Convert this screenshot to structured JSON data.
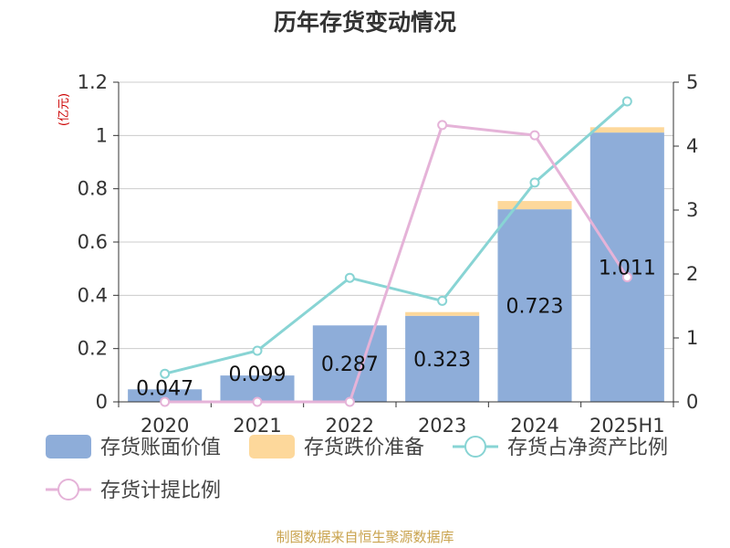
{
  "chart_data": {
    "type": "bar",
    "title": "历年存货变动情况",
    "categories": [
      "2020",
      "2021",
      "2022",
      "2023",
      "2024",
      "2025H1"
    ],
    "y_left": {
      "unit": "(亿元)",
      "range": [
        0,
        1.2
      ],
      "ticks": [
        "0",
        "0.2",
        "0.4",
        "0.6",
        "0.8",
        "1",
        "1.2"
      ]
    },
    "y_right": {
      "range": [
        0,
        5
      ],
      "ticks": [
        "0",
        "1",
        "2",
        "3",
        "4",
        "5"
      ]
    },
    "series": [
      {
        "name": "存货账面价值",
        "type": "bar",
        "axis": "left",
        "color": "#8eadd9",
        "values": [
          0.047,
          0.099,
          0.287,
          0.323,
          0.723,
          1.011
        ],
        "labels": [
          "0.047",
          "0.099",
          "0.287",
          "0.323",
          "0.723",
          "1.011"
        ]
      },
      {
        "name": "存货跌价准备",
        "type": "bar",
        "axis": "left",
        "stacked": true,
        "color": "#fdd89b",
        "values": [
          0,
          0,
          0,
          0.014,
          0.031,
          0.02
        ]
      },
      {
        "name": "存货占净资产比例",
        "type": "line",
        "axis": "right",
        "color": "#88d4d4",
        "values": [
          0.44,
          0.8,
          1.94,
          1.58,
          3.43,
          4.7
        ]
      },
      {
        "name": "存货计提比例",
        "type": "line",
        "axis": "right",
        "color": "#e5b3d8",
        "values": [
          0,
          0,
          0,
          4.33,
          4.17,
          1.95
        ]
      }
    ],
    "grid": true,
    "legend": "bottom"
  },
  "source": "制图数据来自恒生聚源数据库"
}
